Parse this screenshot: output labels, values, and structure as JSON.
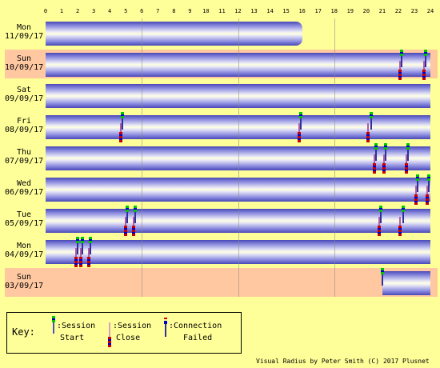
{
  "hours": [
    "0",
    "1",
    "2",
    "3",
    "4",
    "5",
    "6",
    "7",
    "8",
    "9",
    "10",
    "11",
    "12",
    "13",
    "14",
    "15",
    "16",
    "17",
    "18",
    "19",
    "20",
    "21",
    "22",
    "23",
    "24"
  ],
  "rows": [
    {
      "day": "Mon",
      "date": "11/09/17",
      "bg": "yellow",
      "bars": [
        [
          0,
          16.0
        ]
      ],
      "starts": [],
      "ends": [],
      "fails": []
    },
    {
      "day": "Sun",
      "date": "10/09/17",
      "bg": "pink",
      "bars": [
        [
          0,
          24
        ]
      ],
      "starts": [
        22.2,
        23.7
      ],
      "ends": [
        22.1,
        23.6
      ],
      "fails": []
    },
    {
      "day": "Sat",
      "date": "09/09/17",
      "bg": "yellow",
      "bars": [
        [
          0,
          24
        ]
      ],
      "starts": [],
      "ends": [],
      "fails": []
    },
    {
      "day": "Fri",
      "date": "08/09/17",
      "bg": "yellow",
      "bars": [
        [
          0,
          24
        ]
      ],
      "starts": [
        4.8,
        15.9,
        20.3
      ],
      "ends": [
        4.7,
        15.8,
        20.1
      ],
      "fails": []
    },
    {
      "day": "Thu",
      "date": "07/09/17",
      "bg": "yellow",
      "bars": [
        [
          0,
          24
        ]
      ],
      "starts": [
        20.6,
        21.2,
        22.6
      ],
      "ends": [
        20.5,
        21.1,
        22.5
      ],
      "fails": []
    },
    {
      "day": "Wed",
      "date": "06/09/17",
      "bg": "yellow",
      "bars": [
        [
          0,
          24
        ]
      ],
      "starts": [
        23.2,
        23.9
      ],
      "ends": [
        23.1,
        23.8
      ],
      "fails": []
    },
    {
      "day": "Tue",
      "date": "05/09/17",
      "bg": "yellow",
      "bars": [
        [
          0,
          24
        ]
      ],
      "starts": [
        5.1,
        5.6,
        20.9,
        22.3
      ],
      "ends": [
        5.0,
        5.5,
        20.8,
        22.1
      ],
      "fails": []
    },
    {
      "day": "Mon",
      "date": "04/09/17",
      "bg": "yellow",
      "bars": [
        [
          0,
          24
        ]
      ],
      "starts": [
        2.0,
        2.3,
        2.8
      ],
      "ends": [
        1.9,
        2.2,
        2.7
      ],
      "fails": []
    },
    {
      "day": "Sun",
      "date": "03/09/17",
      "bg": "pink",
      "bars": [
        [
          21.0,
          24
        ]
      ],
      "starts": [
        21.0
      ],
      "ends": [],
      "fails": []
    }
  ],
  "key": {
    "title": "Key:",
    "start_label_1": ":Session",
    "start_label_2": "Start",
    "close_label_1": ":Session",
    "close_label_2": "Close",
    "fail_label_1": ":Connection",
    "fail_label_2": "Failed"
  },
  "credit": "Visual Radius by Peter Smith (C) 2017 Plusnet",
  "colors": {
    "background": "#ffff99",
    "row_pink": "#ffc8a0",
    "bar_dark": "#4848b8",
    "session_green": "#00c800",
    "session_blue": "#0000c8",
    "close_red": "#c80000"
  }
}
